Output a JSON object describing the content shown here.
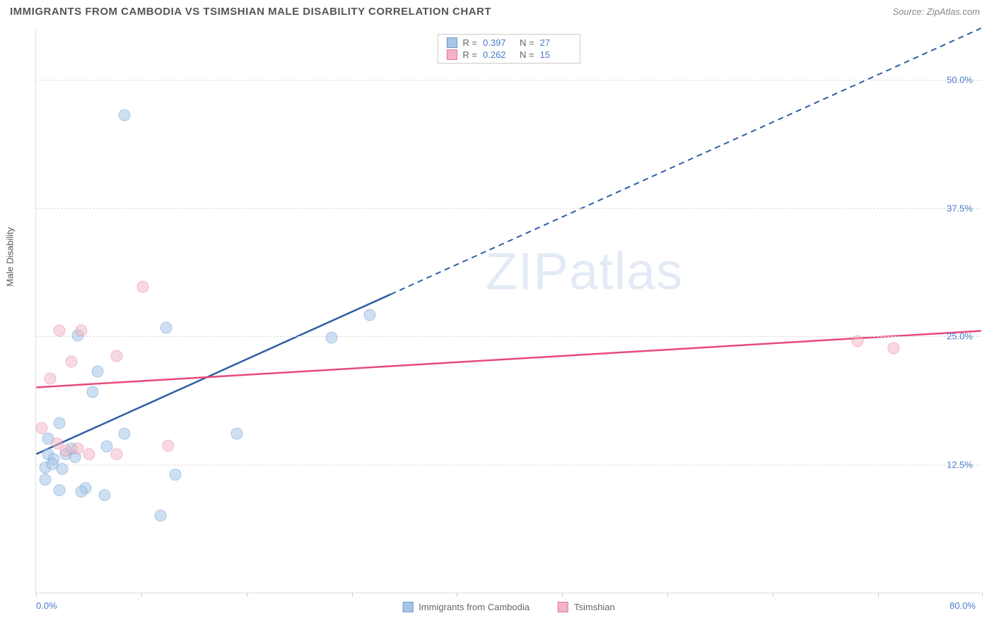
{
  "title": "IMMIGRANTS FROM CAMBODIA VS TSIMSHIAN MALE DISABILITY CORRELATION CHART",
  "source": "Source: ZipAtlas.com",
  "watermark": "ZIPatlas",
  "chart": {
    "type": "scatter",
    "ylabel": "Male Disability",
    "background_color": "#ffffff",
    "grid_color": "#dddddd",
    "axis_color": "#e0e0e0",
    "label_fontsize": 13,
    "title_color": "#555555",
    "value_color": "#4a7bc8",
    "xlim": [
      0,
      80
    ],
    "ylim": [
      0,
      55
    ],
    "ytick_step": 12.5,
    "yticks": [
      {
        "value": 12.5,
        "label": "12.5%"
      },
      {
        "value": 25.0,
        "label": "25.0%"
      },
      {
        "value": 37.5,
        "label": "37.5%"
      },
      {
        "value": 50.0,
        "label": "50.0%"
      }
    ],
    "xtick_positions": [
      0,
      8.9,
      17.8,
      26.7,
      35.6,
      44.5,
      53.4,
      62.3,
      71.2,
      80
    ],
    "xlabel_min": "0.0%",
    "xlabel_max": "80.0%",
    "series": [
      {
        "name": "Immigrants from Cambodia",
        "fill_color": "#a6c5e8",
        "stroke_color": "#6b9bd1",
        "line_color": "#2e5fa3",
        "fill_opacity": 0.55,
        "marker_radius": 8.5,
        "R": "0.397",
        "N": "27",
        "trend": {
          "x1": 0,
          "y1": 13.5,
          "x2": 80,
          "y2": 55,
          "solid_until_x": 30
        },
        "points": [
          {
            "x": 7.5,
            "y": 46.5
          },
          {
            "x": 28.2,
            "y": 27.0
          },
          {
            "x": 25.0,
            "y": 24.8
          },
          {
            "x": 11.0,
            "y": 25.8
          },
          {
            "x": 3.5,
            "y": 25.0
          },
          {
            "x": 5.2,
            "y": 21.5
          },
          {
            "x": 4.8,
            "y": 19.5
          },
          {
            "x": 2.0,
            "y": 16.5
          },
          {
            "x": 1.0,
            "y": 15.0
          },
          {
            "x": 7.5,
            "y": 15.5
          },
          {
            "x": 17.0,
            "y": 15.5
          },
          {
            "x": 1.0,
            "y": 13.5
          },
          {
            "x": 1.5,
            "y": 13.0
          },
          {
            "x": 2.5,
            "y": 13.5
          },
          {
            "x": 3.3,
            "y": 13.2
          },
          {
            "x": 0.8,
            "y": 12.2
          },
          {
            "x": 1.4,
            "y": 12.5
          },
          {
            "x": 11.8,
            "y": 11.5
          },
          {
            "x": 0.8,
            "y": 11.0
          },
          {
            "x": 4.2,
            "y": 10.2
          },
          {
            "x": 2.0,
            "y": 10.0
          },
          {
            "x": 3.8,
            "y": 9.8
          },
          {
            "x": 5.8,
            "y": 9.5
          },
          {
            "x": 10.5,
            "y": 7.5
          },
          {
            "x": 3.0,
            "y": 14.0
          },
          {
            "x": 6.0,
            "y": 14.2
          },
          {
            "x": 2.2,
            "y": 12.0
          }
        ]
      },
      {
        "name": "Tsimshian",
        "fill_color": "#f2b4c4",
        "stroke_color": "#e07a96",
        "line_color": "#e84a7a",
        "fill_opacity": 0.5,
        "marker_radius": 8.5,
        "R": "0.262",
        "N": "15",
        "trend": {
          "x1": 0,
          "y1": 20.0,
          "x2": 80,
          "y2": 25.5,
          "solid_until_x": 80
        },
        "points": [
          {
            "x": 9.0,
            "y": 29.8
          },
          {
            "x": 2.0,
            "y": 25.5
          },
          {
            "x": 3.8,
            "y": 25.5
          },
          {
            "x": 6.8,
            "y": 23.0
          },
          {
            "x": 3.0,
            "y": 22.5
          },
          {
            "x": 1.2,
            "y": 20.8
          },
          {
            "x": 0.5,
            "y": 16.0
          },
          {
            "x": 11.2,
            "y": 14.3
          },
          {
            "x": 3.5,
            "y": 14.0
          },
          {
            "x": 4.5,
            "y": 13.5
          },
          {
            "x": 6.8,
            "y": 13.5
          },
          {
            "x": 69.5,
            "y": 24.5
          },
          {
            "x": 72.5,
            "y": 23.8
          },
          {
            "x": 2.5,
            "y": 13.8
          },
          {
            "x": 1.8,
            "y": 14.5
          }
        ]
      }
    ]
  }
}
